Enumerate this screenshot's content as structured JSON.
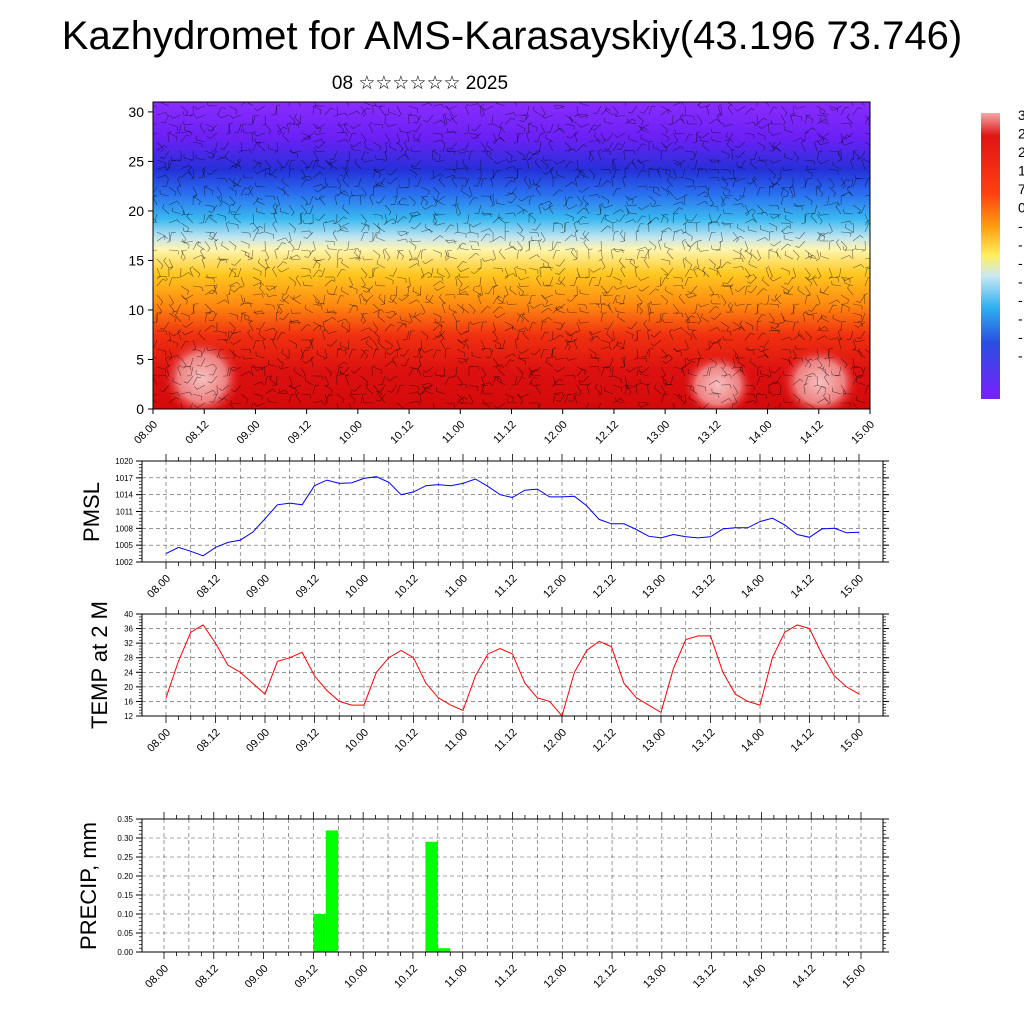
{
  "header": {
    "title": "Kazhydromet for AMS-Karasayskiy(43.196 73.746)",
    "subtitle": "08 ☆☆☆☆☆☆ 2025"
  },
  "chart_data": [
    {
      "type": "heatmap",
      "title": "",
      "ylim": [
        0,
        31
      ],
      "yticks": [
        0,
        5,
        10,
        15,
        20,
        25,
        30
      ],
      "xticks": [
        "08.00",
        "08.12",
        "09.00",
        "09.12",
        "10.00",
        "10.12",
        "11.00",
        "11.12",
        "12.00",
        "12.12",
        "13.00",
        "13.12",
        "14.00",
        "14.12",
        "15.00"
      ],
      "colorbar_labels": [
        "3",
        "2",
        "2",
        "1",
        "7",
        "0",
        "-",
        "-",
        "-",
        "-",
        "-",
        "-",
        "-",
        "-"
      ],
      "colors": {
        "top": "#7a20ff",
        "band_low": "#2030e0",
        "band_mid": "#30b0f0",
        "pale": "#fff8b0",
        "orange": "#ff9a10",
        "red": "#e81010",
        "hot": "#f0a0a0"
      },
      "grid": false
    },
    {
      "type": "line",
      "ylabel": "PMSL",
      "ylim": [
        1002,
        1020
      ],
      "yticks": [
        1002,
        1005,
        1008,
        1011,
        1014,
        1017,
        1020
      ],
      "xticks": [
        "08.00",
        "08.12",
        "09.00",
        "09.12",
        "10.00",
        "10.12",
        "11.00",
        "11.12",
        "12.00",
        "12.12",
        "13.00",
        "13.12",
        "14.00",
        "14.12",
        "15.00"
      ],
      "x": [
        0,
        3,
        6,
        9,
        12,
        15,
        18,
        21,
        24,
        27,
        30,
        33,
        36,
        39,
        42,
        45,
        48,
        51,
        54,
        57,
        60,
        63,
        66,
        69,
        72,
        75,
        78,
        81,
        84,
        87,
        90,
        93,
        96,
        99,
        102,
        105,
        108,
        111,
        114,
        117,
        120,
        123,
        126,
        129,
        132,
        135,
        138,
        141,
        144,
        147,
        150,
        153,
        156,
        159,
        162,
        165,
        168
      ],
      "series": [
        {
          "color": "#0000ff",
          "values": [
            1003.5,
            1004.6,
            1003.9,
            1003.1,
            1004.6,
            1005.5,
            1005.9,
            1007.3,
            1009.7,
            1012.2,
            1012.5,
            1012.2,
            1015.6,
            1016.6,
            1016.0,
            1016.1,
            1016.9,
            1017.2,
            1016.2,
            1014.0,
            1014.5,
            1015.6,
            1015.8,
            1015.6,
            1016.0,
            1016.8,
            1015.5,
            1014.0,
            1013.5,
            1014.8,
            1015.0,
            1013.6,
            1013.6,
            1013.7,
            1012.0,
            1009.6,
            1008.8,
            1008.8,
            1007.8,
            1006.6,
            1006.3,
            1006.9,
            1006.5,
            1006.3,
            1006.5,
            1007.9,
            1008.1,
            1008.1,
            1009.2,
            1009.8,
            1008.6,
            1006.9,
            1006.4,
            1007.9,
            1008.0,
            1007.2,
            1007.3
          ]
        }
      ],
      "grid": true
    },
    {
      "type": "line",
      "ylabel": "TEMP at 2 M",
      "ylim": [
        12,
        40
      ],
      "yticks": [
        12,
        16,
        20,
        24,
        28,
        32,
        36,
        40
      ],
      "xticks": [
        "08.00",
        "08.12",
        "09.00",
        "09.12",
        "10.00",
        "10.12",
        "11.00",
        "11.12",
        "12.00",
        "12.12",
        "13.00",
        "13.12",
        "14.00",
        "14.12",
        "15.00"
      ],
      "x": [
        0,
        3,
        6,
        9,
        12,
        15,
        18,
        21,
        24,
        27,
        30,
        33,
        36,
        39,
        42,
        45,
        48,
        51,
        54,
        57,
        60,
        63,
        66,
        69,
        72,
        75,
        78,
        81,
        84,
        87,
        90,
        93,
        96,
        99,
        102,
        105,
        108,
        111,
        114,
        117,
        120,
        123,
        126,
        129,
        132,
        135,
        138,
        141,
        144,
        147,
        150,
        153,
        156,
        159,
        162,
        165,
        168
      ],
      "series": [
        {
          "color": "#ff0000",
          "values": [
            17,
            27,
            35,
            37,
            32,
            26,
            24,
            21,
            18,
            27,
            28,
            29.5,
            23,
            19,
            16,
            15,
            15,
            24,
            28,
            30,
            28,
            21,
            17,
            15,
            13.5,
            23,
            29,
            30.5,
            29,
            21,
            17,
            16,
            12,
            24,
            30,
            32.5,
            31,
            21,
            17,
            15,
            13,
            25,
            33,
            34,
            34,
            24,
            18,
            16,
            15,
            28,
            35,
            37,
            36,
            29,
            23,
            20,
            18
          ]
        }
      ],
      "grid": true
    },
    {
      "type": "bar",
      "ylabel": "PRECIP, mm",
      "ylim": [
        0,
        0.35
      ],
      "yticks": [
        "0.00",
        "0.05",
        "0.10",
        "0.15",
        "0.20",
        "0.25",
        "0.30",
        "0.35"
      ],
      "xticks": [
        "08.00",
        "08.12",
        "09.00",
        "09.12",
        "10.00",
        "10.12",
        "11.00",
        "11.12",
        "12.00",
        "12.12",
        "13.00",
        "13.12",
        "14.00",
        "14.12",
        "15.00"
      ],
      "x": [
        0,
        3,
        6,
        9,
        12,
        15,
        18,
        21,
        24,
        27,
        30,
        33,
        36,
        39,
        42,
        45,
        48,
        51,
        54,
        57,
        60,
        63,
        66,
        69,
        72,
        75,
        78,
        81,
        84,
        87,
        90,
        93,
        96,
        99,
        102,
        105,
        108,
        111,
        114,
        117,
        120,
        123,
        126,
        129,
        132,
        135,
        138,
        141,
        144,
        147,
        150,
        153,
        156,
        159,
        162,
        165
      ],
      "series": [
        {
          "color": "#00ff00",
          "values": [
            0,
            0,
            0,
            0,
            0,
            0,
            0,
            0,
            0,
            0,
            0,
            0,
            0.1,
            0.32,
            0,
            0,
            0,
            0,
            0,
            0,
            0,
            0.29,
            0.01,
            0,
            0,
            0,
            0,
            0,
            0,
            0,
            0,
            0,
            0,
            0,
            0,
            0,
            0,
            0,
            0,
            0,
            0,
            0,
            0,
            0,
            0,
            0,
            0,
            0,
            0,
            0,
            0,
            0,
            0,
            0,
            0,
            0
          ]
        }
      ],
      "grid": true
    }
  ]
}
